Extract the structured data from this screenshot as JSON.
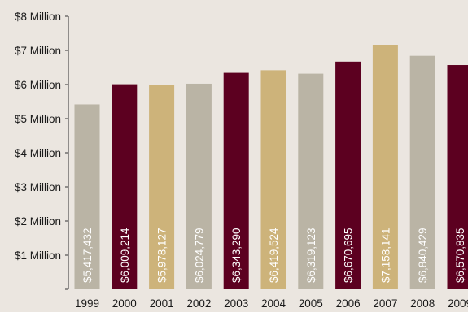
{
  "chart_data": {
    "type": "bar",
    "title": "",
    "xlabel": "",
    "ylabel": "",
    "categories": [
      "1999",
      "2000",
      "2001",
      "2002",
      "2003",
      "2004",
      "2005",
      "2006",
      "2007",
      "2008",
      "2009"
    ],
    "values": [
      5417432,
      6009214,
      5978127,
      6024779,
      6343290,
      6419524,
      6319123,
      6670695,
      7158141,
      6840429,
      6570835
    ],
    "data_labels": [
      "$5,417,432",
      "$6,009,214",
      "$5,978,127",
      "$6,024,779",
      "$6,343,290",
      "$6,419,524",
      "$6,319,123",
      "$6,670,695",
      "$7,158,141",
      "$6,840,429",
      "$6,570,835"
    ],
    "bar_colors": [
      "#bab4a5",
      "#5c0020",
      "#cdb37a",
      "#bab4a5",
      "#5c0020",
      "#cdb37a",
      "#bab4a5",
      "#5c0020",
      "#cdb37a",
      "#bab4a5",
      "#5c0020"
    ],
    "ylim": [
      0,
      8000000
    ],
    "yticks": [
      0,
      1000000,
      2000000,
      3000000,
      4000000,
      5000000,
      6000000,
      7000000,
      8000000
    ],
    "ytick_labels": [
      "",
      "$1 Million",
      "$2 Million",
      "$3 Million",
      "$4 Million",
      "$5 Million",
      "$6 Million",
      "$7 Million",
      "$8 Million"
    ],
    "grid": false,
    "legend": "none",
    "background": "#ebe6e0"
  }
}
